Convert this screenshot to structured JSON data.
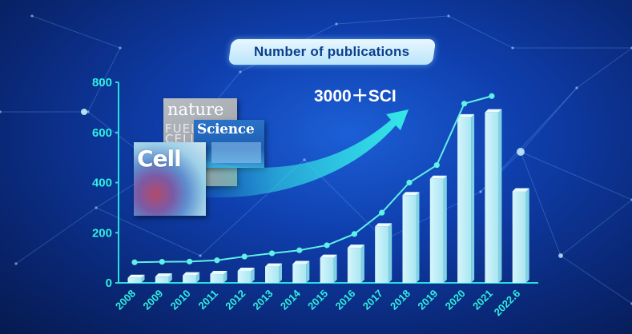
{
  "title": "Number of publications",
  "callout": "3000＋SCI",
  "covers": {
    "nature": {
      "logo": "nature",
      "side_text": "FUEL\nCELL"
    },
    "science": {
      "logo": "Science"
    },
    "cell": {
      "logo": "Cell"
    }
  },
  "colors": {
    "axis": "#26e0e0",
    "line": "#5ff0e6",
    "bar_front": "#a8e6f2",
    "bar_side": "#7fd1e4",
    "tick_text": "#2ff0e0",
    "arrow": "#34e8e8"
  },
  "chart_data": {
    "type": "bar",
    "categories": [
      "2008",
      "2009",
      "2010",
      "2011",
      "2012",
      "2013",
      "2014",
      "2015",
      "2016",
      "2017",
      "2018",
      "2019",
      "2020",
      "2021",
      "2022.6"
    ],
    "values": [
      20,
      25,
      30,
      35,
      48,
      65,
      75,
      100,
      140,
      225,
      350,
      415,
      660,
      680,
      365
    ],
    "line_series": [
      82,
      84,
      85,
      90,
      105,
      118,
      130,
      150,
      195,
      280,
      400,
      470,
      715,
      745
    ],
    "ylim": [
      0,
      800
    ],
    "yticks": [
      "0",
      "200",
      "400",
      "600",
      "800"
    ],
    "title": "Number of publications",
    "xlabel": "",
    "ylabel": "",
    "grid": false
  }
}
